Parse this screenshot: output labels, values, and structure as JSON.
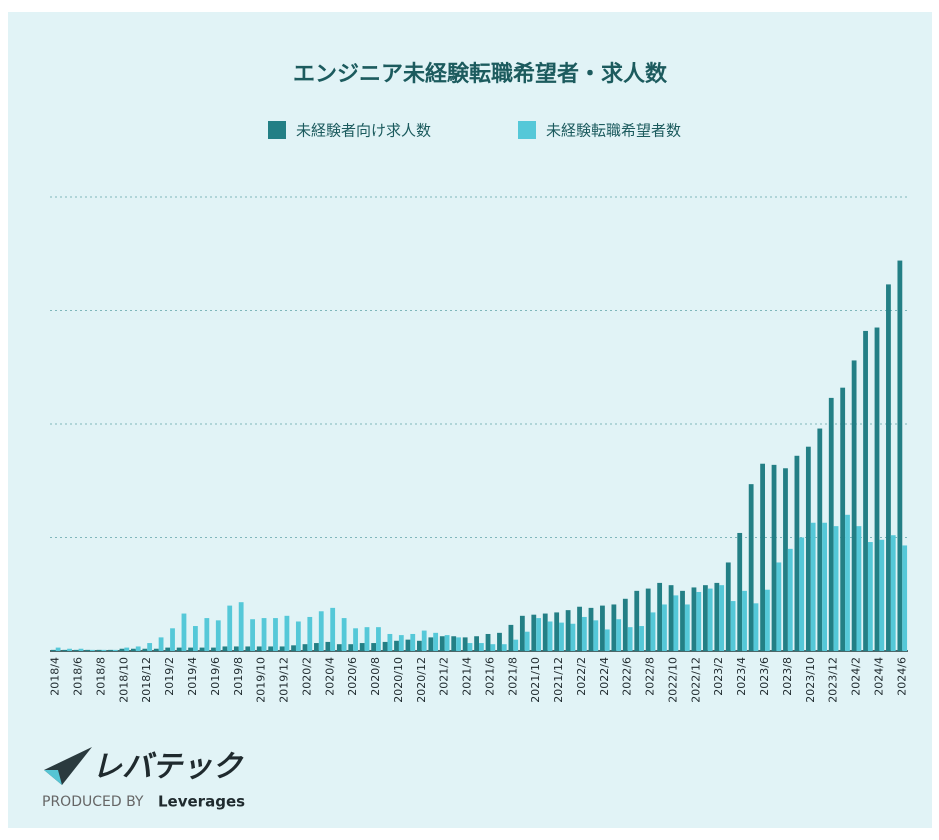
{
  "chart_data": {
    "type": "bar",
    "title": "エンジニア未経験転職希望者・求人数",
    "categories": [
      "2018/4",
      null,
      "2018/6",
      null,
      "2018/8",
      null,
      "2018/10",
      null,
      "2018/12",
      null,
      "2019/2",
      null,
      "2019/4",
      null,
      "2019/6",
      null,
      "2019/8",
      null,
      "2019/10",
      null,
      "2019/12",
      null,
      "2020/2",
      null,
      "2020/4",
      null,
      "2020/6",
      null,
      "2020/8",
      null,
      "2020/10",
      null,
      "2020/12",
      null,
      "2021/2",
      null,
      "2021/4",
      null,
      "2021/6",
      null,
      "2021/8",
      null,
      "2021/10",
      null,
      "2021/12",
      null,
      "2022/2",
      null,
      "2022/4",
      null,
      "2022/6",
      null,
      "2022/8",
      null,
      "2022/10",
      null,
      "2022/12",
      null,
      "2023/2",
      null,
      "2023/4",
      null,
      "2023/6",
      null,
      "2023/8",
      null,
      "2023/10",
      null,
      "2023/12",
      null,
      "2024/2",
      null,
      "2024/4",
      null,
      "2024/6"
    ],
    "series": [
      {
        "name": "未経験者向け求人数",
        "color": "#237f85",
        "values": [
          0.01,
          0.01,
          0.01,
          0.01,
          0.01,
          0.01,
          0.02,
          0.02,
          0.02,
          0.02,
          0.03,
          0.03,
          0.03,
          0.03,
          0.03,
          0.04,
          0.04,
          0.04,
          0.04,
          0.04,
          0.04,
          0.05,
          0.06,
          0.07,
          0.08,
          0.06,
          0.06,
          0.07,
          0.07,
          0.08,
          0.09,
          0.1,
          0.09,
          0.12,
          0.13,
          0.13,
          0.12,
          0.13,
          0.15,
          0.16,
          0.23,
          0.31,
          0.32,
          0.33,
          0.34,
          0.36,
          0.39,
          0.38,
          0.4,
          0.41,
          0.46,
          0.53,
          0.55,
          0.6,
          0.58,
          0.53,
          0.56,
          0.58,
          0.6,
          0.78,
          1.04,
          1.47,
          1.65,
          1.64,
          1.61,
          1.72,
          1.8,
          1.96,
          2.23,
          2.32,
          2.56,
          2.82,
          2.85,
          3.23,
          3.44
        ]
      },
      {
        "name": "未経験転職希望者数",
        "color": "#55c8d8",
        "values": [
          0.03,
          0.02,
          0.02,
          0.01,
          0.01,
          0.01,
          0.03,
          0.04,
          0.07,
          0.12,
          0.2,
          0.33,
          0.22,
          0.29,
          0.27,
          0.4,
          0.43,
          0.28,
          0.29,
          0.29,
          0.31,
          0.26,
          0.3,
          0.35,
          0.38,
          0.29,
          0.2,
          0.21,
          0.21,
          0.15,
          0.14,
          0.15,
          0.18,
          0.16,
          0.14,
          0.12,
          0.07,
          0.07,
          0.06,
          0.06,
          0.1,
          0.17,
          0.29,
          0.26,
          0.25,
          0.24,
          0.3,
          0.27,
          0.19,
          0.28,
          0.21,
          0.22,
          0.34,
          0.41,
          0.49,
          0.41,
          0.52,
          0.55,
          0.58,
          0.44,
          0.53,
          0.42,
          0.54,
          0.78,
          0.9,
          1.0,
          1.13,
          1.13,
          1.1,
          1.2,
          1.1,
          0.96,
          0.98,
          1.02,
          0.93
        ]
      }
    ],
    "ylim": [
      0,
      4
    ],
    "yticks": [
      0,
      1,
      2,
      3,
      4
    ],
    "grid": true
  },
  "logo": {
    "name": "レバテック",
    "tagline": "PRODUCED BY",
    "brand": "Leverages"
  }
}
